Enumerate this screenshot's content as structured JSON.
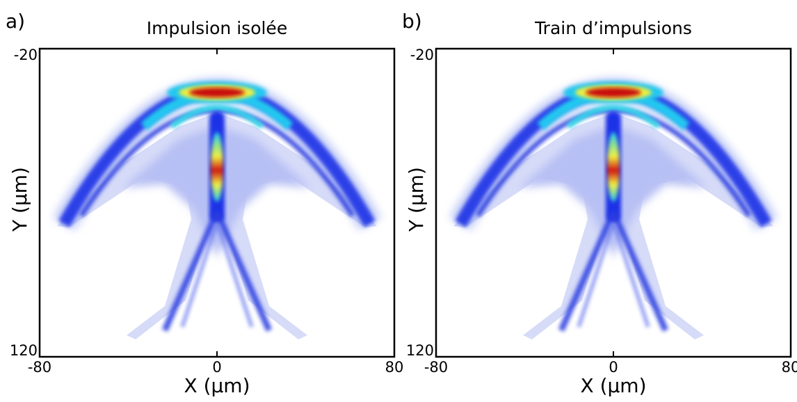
{
  "chart_data": [
    {
      "type": "heatmap",
      "panel_label": "a)",
      "title": "Impulsion isolée",
      "x_label": "X (µm)",
      "y_label": "Y (µm)",
      "xlim": [
        -80,
        80
      ],
      "xticks": [
        -80,
        0,
        80
      ],
      "ylim": [
        -20,
        120
      ],
      "yticks": [
        -20,
        120
      ],
      "y_inverted": true
    },
    {
      "type": "heatmap",
      "panel_label": "b)",
      "title": "Train d’impulsions",
      "x_label": "X (µm)",
      "y_label": "Y (µm)",
      "xlim": [
        -80,
        80
      ],
      "xticks": [
        -80,
        0,
        80
      ],
      "ylim": [
        -20,
        120
      ],
      "yticks": [
        -20,
        120
      ],
      "y_inverted": true
    }
  ]
}
